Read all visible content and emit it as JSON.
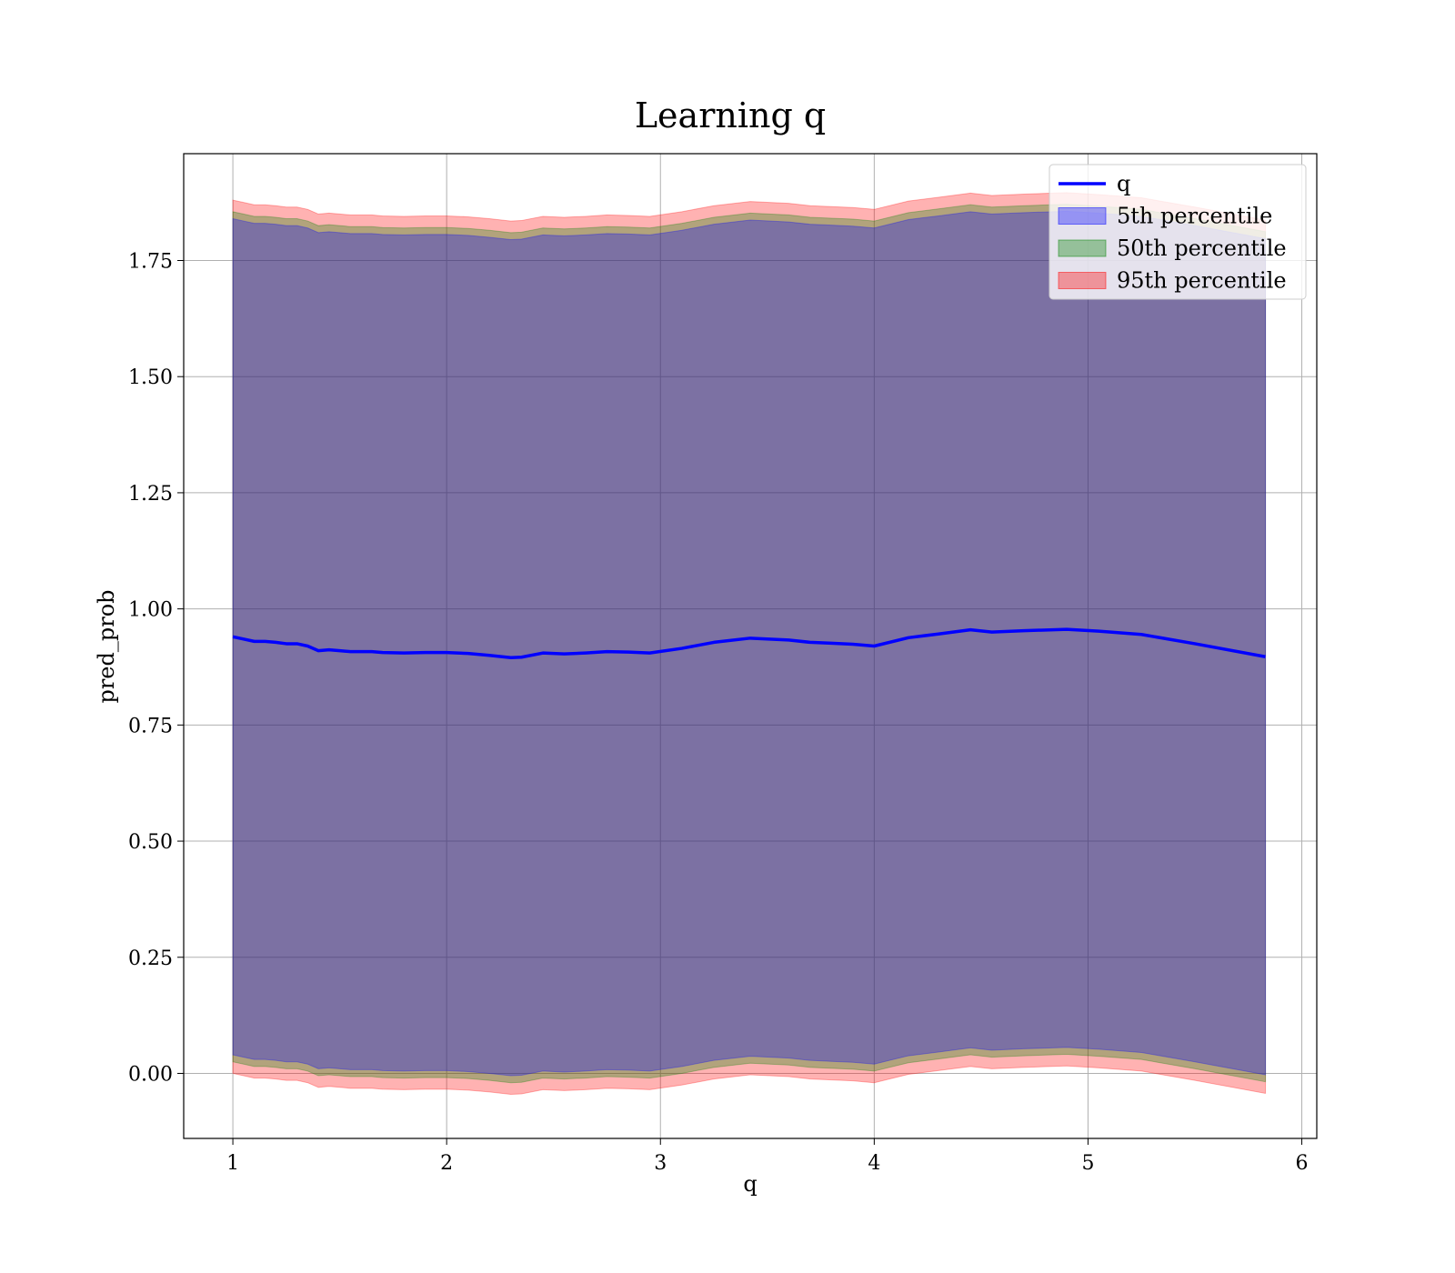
{
  "chart_data": {
    "type": "area",
    "title": "Learning q",
    "xlabel": "q",
    "ylabel": "pred_prob",
    "xlim": [
      0.77,
      6.07
    ],
    "ylim": [
      -0.14,
      1.98
    ],
    "xticks": [
      1,
      2,
      3,
      4,
      5,
      6
    ],
    "yticks": [
      0.0,
      0.25,
      0.5,
      0.75,
      1.0,
      1.25,
      1.5,
      1.75
    ],
    "xtick_labels": [
      "1",
      "2",
      "3",
      "4",
      "5",
      "6"
    ],
    "ytick_labels": [
      "0.00",
      "0.25",
      "0.50",
      "0.75",
      "1.00",
      "1.25",
      "1.50",
      "1.75"
    ],
    "grid": true,
    "legend_position": "top-right",
    "line": {
      "name": "q",
      "color": "#0000ff",
      "x": [
        1.0,
        1.05,
        1.1,
        1.15,
        1.2,
        1.25,
        1.3,
        1.35,
        1.4,
        1.45,
        1.5,
        1.55,
        1.6,
        1.65,
        1.7,
        1.8,
        1.9,
        2.0,
        2.1,
        2.2,
        2.3,
        2.35,
        2.45,
        2.55,
        2.65,
        2.75,
        2.85,
        2.95,
        3.1,
        3.25,
        3.42,
        3.6,
        3.7,
        3.8,
        3.9,
        4.0,
        4.16,
        4.3,
        4.45,
        4.55,
        4.7,
        4.9,
        5.05,
        5.25,
        5.5,
        5.83
      ],
      "y": [
        0.94,
        0.935,
        0.93,
        0.93,
        0.928,
        0.925,
        0.925,
        0.92,
        0.91,
        0.912,
        0.91,
        0.908,
        0.908,
        0.908,
        0.906,
        0.905,
        0.906,
        0.906,
        0.904,
        0.9,
        0.895,
        0.896,
        0.905,
        0.903,
        0.905,
        0.908,
        0.907,
        0.905,
        0.915,
        0.928,
        0.937,
        0.933,
        0.928,
        0.926,
        0.924,
        0.92,
        0.938,
        0.946,
        0.955,
        0.95,
        0.953,
        0.956,
        0.952,
        0.945,
        0.925,
        0.897
      ]
    },
    "series": [
      {
        "name": "5th percentile",
        "color": "#0000ff",
        "alpha": 0.3,
        "x": [
          1.0,
          1.05,
          1.1,
          1.15,
          1.2,
          1.25,
          1.3,
          1.35,
          1.4,
          1.45,
          1.5,
          1.55,
          1.6,
          1.65,
          1.7,
          1.8,
          1.9,
          2.0,
          2.1,
          2.2,
          2.3,
          2.35,
          2.45,
          2.55,
          2.65,
          2.75,
          2.85,
          2.95,
          3.1,
          3.25,
          3.42,
          3.6,
          3.7,
          3.8,
          3.9,
          4.0,
          4.16,
          4.3,
          4.45,
          4.55,
          4.7,
          4.9,
          5.05,
          5.25,
          5.5,
          5.83
        ],
        "lower": [
          0.04,
          0.035,
          0.03,
          0.03,
          0.028,
          0.025,
          0.025,
          0.02,
          0.01,
          0.012,
          0.01,
          0.008,
          0.008,
          0.008,
          0.006,
          0.005,
          0.006,
          0.006,
          0.004,
          0.0,
          -0.005,
          -0.004,
          0.005,
          0.003,
          0.005,
          0.008,
          0.007,
          0.005,
          0.015,
          0.028,
          0.037,
          0.033,
          0.028,
          0.026,
          0.024,
          0.02,
          0.038,
          0.046,
          0.055,
          0.05,
          0.053,
          0.056,
          0.052,
          0.045,
          0.025,
          -0.003
        ],
        "upper": [
          1.84,
          1.835,
          1.83,
          1.83,
          1.828,
          1.825,
          1.825,
          1.82,
          1.81,
          1.812,
          1.81,
          1.808,
          1.808,
          1.808,
          1.806,
          1.805,
          1.806,
          1.806,
          1.804,
          1.8,
          1.795,
          1.796,
          1.805,
          1.803,
          1.805,
          1.808,
          1.807,
          1.805,
          1.815,
          1.828,
          1.837,
          1.833,
          1.828,
          1.826,
          1.824,
          1.82,
          1.838,
          1.846,
          1.855,
          1.85,
          1.853,
          1.856,
          1.852,
          1.845,
          1.825,
          1.797
        ]
      },
      {
        "name": "50th percentile",
        "color": "#008000",
        "alpha": 0.3,
        "x": [
          1.0,
          1.05,
          1.1,
          1.15,
          1.2,
          1.25,
          1.3,
          1.35,
          1.4,
          1.45,
          1.5,
          1.55,
          1.6,
          1.65,
          1.7,
          1.8,
          1.9,
          2.0,
          2.1,
          2.2,
          2.3,
          2.35,
          2.45,
          2.55,
          2.65,
          2.75,
          2.85,
          2.95,
          3.1,
          3.25,
          3.42,
          3.6,
          3.7,
          3.8,
          3.9,
          4.0,
          4.16,
          4.3,
          4.45,
          4.55,
          4.7,
          4.9,
          5.05,
          5.25,
          5.5,
          5.83
        ],
        "lower": [
          0.025,
          0.02,
          0.015,
          0.015,
          0.013,
          0.01,
          0.01,
          0.005,
          -0.005,
          -0.003,
          -0.005,
          -0.007,
          -0.007,
          -0.007,
          -0.009,
          -0.01,
          -0.009,
          -0.009,
          -0.011,
          -0.015,
          -0.02,
          -0.019,
          -0.01,
          -0.012,
          -0.01,
          -0.007,
          -0.008,
          -0.01,
          0.0,
          0.013,
          0.022,
          0.018,
          0.013,
          0.011,
          0.009,
          0.005,
          0.023,
          0.031,
          0.04,
          0.035,
          0.038,
          0.041,
          0.037,
          0.03,
          0.01,
          -0.018
        ],
        "upper": [
          1.855,
          1.85,
          1.845,
          1.845,
          1.843,
          1.84,
          1.84,
          1.835,
          1.825,
          1.827,
          1.825,
          1.823,
          1.823,
          1.823,
          1.821,
          1.82,
          1.821,
          1.821,
          1.819,
          1.815,
          1.81,
          1.811,
          1.82,
          1.818,
          1.82,
          1.823,
          1.822,
          1.82,
          1.83,
          1.843,
          1.852,
          1.848,
          1.843,
          1.841,
          1.839,
          1.835,
          1.853,
          1.861,
          1.87,
          1.865,
          1.868,
          1.871,
          1.867,
          1.86,
          1.84,
          1.812
        ]
      },
      {
        "name": "95th percentile",
        "color": "#ff0000",
        "alpha": 0.3,
        "x": [
          1.0,
          1.05,
          1.1,
          1.15,
          1.2,
          1.25,
          1.3,
          1.35,
          1.4,
          1.45,
          1.5,
          1.55,
          1.6,
          1.65,
          1.7,
          1.8,
          1.9,
          2.0,
          2.1,
          2.2,
          2.3,
          2.35,
          2.45,
          2.55,
          2.65,
          2.75,
          2.85,
          2.95,
          3.1,
          3.25,
          3.42,
          3.6,
          3.7,
          3.8,
          3.9,
          4.0,
          4.16,
          4.3,
          4.45,
          4.55,
          4.7,
          4.9,
          5.05,
          5.25,
          5.5,
          5.83
        ],
        "lower": [
          0.0,
          -0.005,
          -0.01,
          -0.01,
          -0.012,
          -0.015,
          -0.015,
          -0.02,
          -0.03,
          -0.028,
          -0.03,
          -0.032,
          -0.032,
          -0.032,
          -0.034,
          -0.035,
          -0.034,
          -0.034,
          -0.036,
          -0.04,
          -0.045,
          -0.044,
          -0.035,
          -0.037,
          -0.035,
          -0.032,
          -0.033,
          -0.035,
          -0.025,
          -0.012,
          -0.003,
          -0.007,
          -0.012,
          -0.014,
          -0.016,
          -0.02,
          -0.002,
          0.006,
          0.015,
          0.01,
          0.013,
          0.016,
          0.012,
          0.005,
          -0.015,
          -0.043
        ],
        "upper": [
          1.88,
          1.875,
          1.87,
          1.87,
          1.868,
          1.865,
          1.865,
          1.86,
          1.85,
          1.852,
          1.85,
          1.848,
          1.848,
          1.848,
          1.846,
          1.845,
          1.846,
          1.846,
          1.844,
          1.84,
          1.835,
          1.836,
          1.845,
          1.843,
          1.845,
          1.848,
          1.847,
          1.845,
          1.855,
          1.868,
          1.877,
          1.873,
          1.868,
          1.866,
          1.864,
          1.86,
          1.878,
          1.886,
          1.895,
          1.89,
          1.893,
          1.896,
          1.892,
          1.885,
          1.865,
          1.837
        ]
      }
    ],
    "legend": [
      {
        "label": "q",
        "kind": "line",
        "color": "#0000ff"
      },
      {
        "label": "5th percentile",
        "kind": "patch",
        "color": "#0000ff"
      },
      {
        "label": "50th percentile",
        "kind": "patch",
        "color": "#008000"
      },
      {
        "label": "95th percentile",
        "kind": "patch",
        "color": "#ff0000"
      }
    ]
  }
}
